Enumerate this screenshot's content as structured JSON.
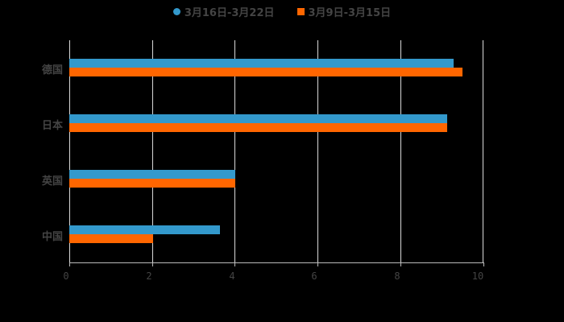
{
  "chart_data": {
    "type": "bar",
    "orientation": "horizontal",
    "title": "",
    "xlabel": "",
    "ylabel": "",
    "categories": [
      "德国",
      "日本",
      "英国",
      "中国"
    ],
    "series": [
      {
        "name": "3月16日-3月22日",
        "color": "#3399cc",
        "values": [
          9.28,
          9.12,
          4.0,
          3.64
        ]
      },
      {
        "name": "3月9日-3月15日",
        "color": "#ff6600",
        "values": [
          9.49,
          9.12,
          4.0,
          2.02
        ]
      }
    ],
    "xlim": [
      0,
      10
    ],
    "xticks": [
      "0",
      "2",
      "4",
      "6",
      "8",
      "10"
    ],
    "grid": true,
    "legend_position": "top"
  },
  "legend": {
    "items": [
      {
        "label": "3月16日-3月22日",
        "color": "#3399cc",
        "marker": "circle"
      },
      {
        "label": "3月9日-3月15日",
        "color": "#ff6600",
        "marker": "square"
      }
    ]
  },
  "colors": {
    "background": "#000000",
    "grid": "#d9d9d9",
    "text": "#444444"
  }
}
